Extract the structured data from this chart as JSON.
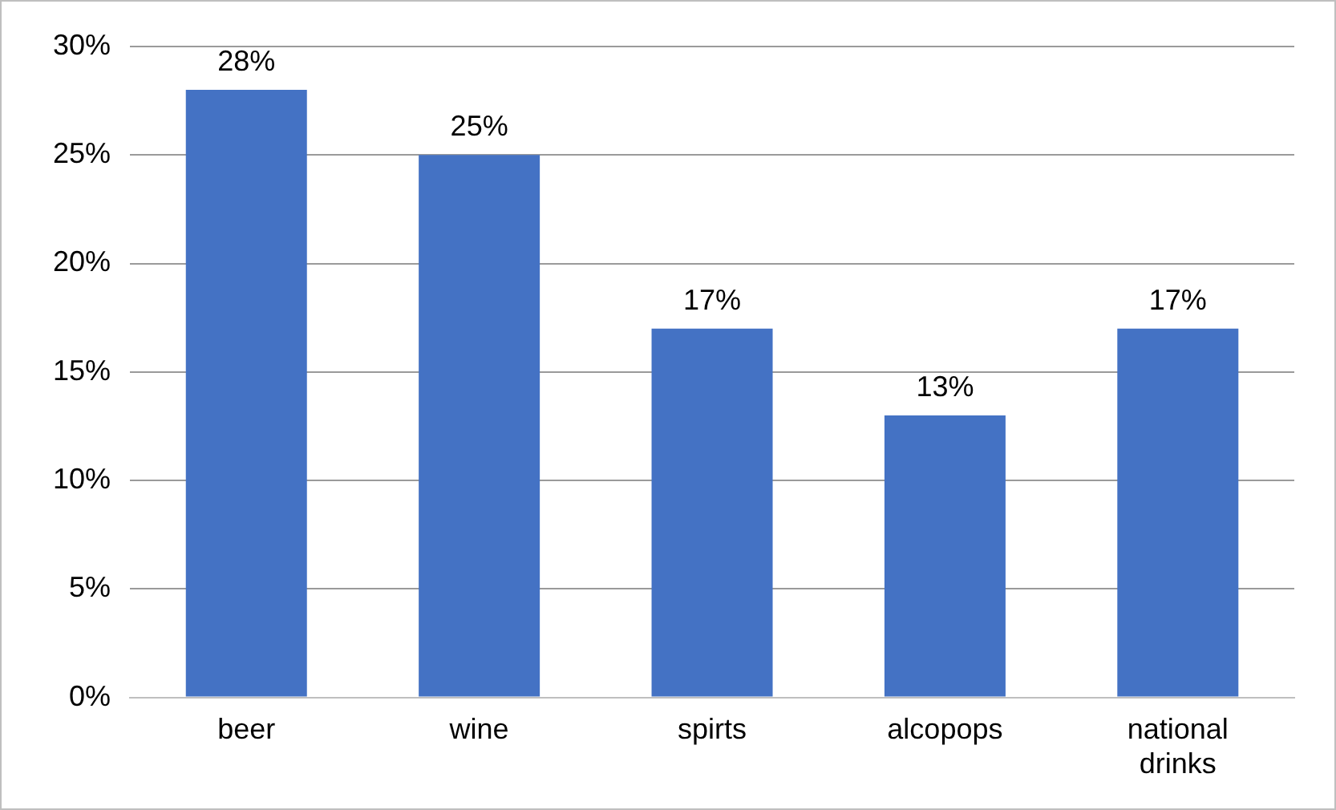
{
  "chart_data": {
    "type": "bar",
    "categories": [
      "beer",
      "wine",
      "spirts",
      "alcopops",
      "national drinks"
    ],
    "values": [
      28,
      25,
      17,
      13,
      17
    ],
    "color": "#4472c4",
    "ylim": [
      0,
      30
    ],
    "yticks": [
      {
        "value": 0,
        "label": "0%"
      },
      {
        "value": 5,
        "label": "5%"
      },
      {
        "value": 10,
        "label": "10%"
      },
      {
        "value": 15,
        "label": "15%"
      },
      {
        "value": 20,
        "label": "20%"
      },
      {
        "value": 25,
        "label": "25%"
      },
      {
        "value": 30,
        "label": "30%"
      }
    ],
    "value_labels": [
      "28%",
      "25%",
      "17%",
      "13%",
      "17%"
    ],
    "grid": "y",
    "legend": false
  }
}
